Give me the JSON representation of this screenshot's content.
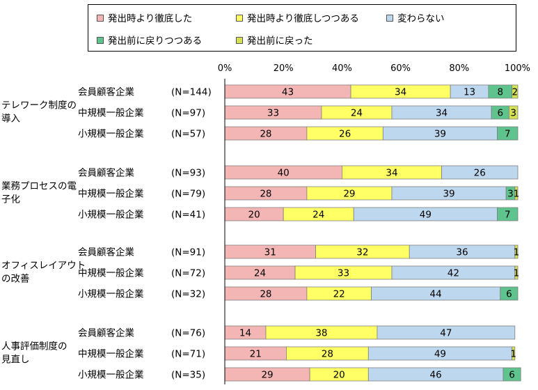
{
  "chart_data": {
    "type": "bar",
    "orientation": "horizontal",
    "stacked": true,
    "xlim": [
      0,
      100
    ],
    "x_ticks": [
      "0%",
      "20%",
      "40%",
      "60%",
      "80%",
      "100%"
    ],
    "series": [
      {
        "name": "発出時より徹底した",
        "color": "#F4B6B4"
      },
      {
        "name": "発出時より徹底しつつある",
        "color": "#FFFF66"
      },
      {
        "name": "変わらない",
        "color": "#BDD7EE"
      },
      {
        "name": "発出前に戻りつつある",
        "color": "#5FC38E"
      },
      {
        "name": "発出前に戻った",
        "color": "#D4E157"
      }
    ],
    "groups": [
      {
        "label": "テレワーク制度の導入",
        "label_lines": [
          "テレワーク制度の",
          "導入"
        ],
        "rows": [
          {
            "category": "会員顧客企業",
            "n": "(N=144)",
            "values": [
              43,
              34,
              13,
              8,
              2
            ]
          },
          {
            "category": "中規模一般企業",
            "n": "(N=97)",
            "values": [
              33,
              24,
              34,
              6,
              3
            ]
          },
          {
            "category": "小規模一般企業",
            "n": "(N=57)",
            "values": [
              28,
              26,
              39,
              7,
              0
            ]
          }
        ]
      },
      {
        "label": "業務プロセスの電子化",
        "label_lines": [
          "業務プロセスの電",
          "子化"
        ],
        "rows": [
          {
            "category": "会員顧客企業",
            "n": "(N=93)",
            "values": [
              40,
              34,
              26,
              0,
              0
            ]
          },
          {
            "category": "中規模一般企業",
            "n": "(N=79)",
            "values": [
              28,
              29,
              39,
              3,
              1
            ]
          },
          {
            "category": "小規模一般企業",
            "n": "(N=41)",
            "values": [
              20,
              24,
              49,
              7,
              0
            ]
          }
        ]
      },
      {
        "label": "オフィスレイアウトの改善",
        "label_lines": [
          "オフィスレイアウト",
          "の改善"
        ],
        "rows": [
          {
            "category": "会員顧客企業",
            "n": "(N=91)",
            "values": [
              31,
              32,
              36,
              0,
              1
            ]
          },
          {
            "category": "中規模一般企業",
            "n": "(N=72)",
            "values": [
              24,
              33,
              42,
              0,
              1
            ]
          },
          {
            "category": "小規模一般企業",
            "n": "(N=32)",
            "values": [
              28,
              22,
              44,
              6,
              0
            ]
          }
        ]
      },
      {
        "label": "人事評価制度の見直し",
        "label_lines": [
          "人事評価制度の",
          "見直し"
        ],
        "rows": [
          {
            "category": "会員顧客企業",
            "n": "(N=76)",
            "values": [
              14,
              38,
              47,
              0,
              0
            ]
          },
          {
            "category": "中規模一般企業",
            "n": "(N=71)",
            "values": [
              21,
              28,
              49,
              0,
              1
            ]
          },
          {
            "category": "小規模一般企業",
            "n": "(N=35)",
            "values": [
              29,
              20,
              46,
              6,
              0
            ]
          }
        ]
      }
    ]
  }
}
